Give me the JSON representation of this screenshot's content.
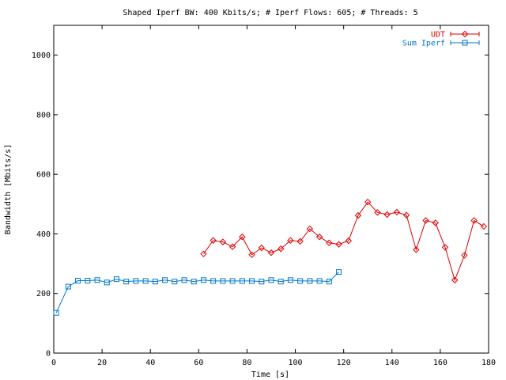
{
  "chart_data": {
    "type": "line",
    "title": "Shaped Iperf BW: 400 Kbits/s; # Iperf Flows: 605; # Threads: 5",
    "xlabel": "Time [s]",
    "ylabel": "Bandwidth [Mbits/s]",
    "xlim": [
      0,
      180
    ],
    "ylim": [
      0,
      1100
    ],
    "xticks": [
      0,
      20,
      40,
      60,
      80,
      100,
      120,
      140,
      160,
      180
    ],
    "yticks": [
      0,
      200,
      400,
      600,
      800,
      1000
    ],
    "grid": false,
    "legend_position": "top-right",
    "series": [
      {
        "name": "UDT",
        "color": "#dd0000",
        "marker": "diamond",
        "x": [
          62,
          66,
          70,
          74,
          78,
          82,
          86,
          90,
          94,
          98,
          102,
          106,
          110,
          114,
          118,
          122,
          126,
          130,
          134,
          138,
          142,
          146,
          150,
          154,
          158,
          162,
          166,
          170,
          174,
          178
        ],
        "y": [
          333,
          378,
          373,
          357,
          390,
          330,
          353,
          337,
          350,
          378,
          375,
          417,
          390,
          370,
          365,
          377,
          462,
          507,
          472,
          465,
          473,
          463,
          347,
          445,
          437,
          355,
          245,
          328,
          445,
          425
        ]
      },
      {
        "name": "Sum Iperf",
        "color": "#0077cc",
        "marker": "square",
        "x": [
          1,
          6,
          10,
          14,
          18,
          22,
          26,
          30,
          34,
          38,
          42,
          46,
          50,
          54,
          58,
          62,
          66,
          70,
          74,
          78,
          82,
          86,
          90,
          94,
          98,
          102,
          106,
          110,
          114,
          118
        ],
        "y": [
          135,
          223,
          243,
          243,
          245,
          237,
          248,
          240,
          242,
          242,
          240,
          245,
          240,
          245,
          240,
          245,
          242,
          242,
          242,
          242,
          242,
          240,
          245,
          240,
          245,
          242,
          242,
          242,
          240,
          272
        ]
      }
    ]
  }
}
